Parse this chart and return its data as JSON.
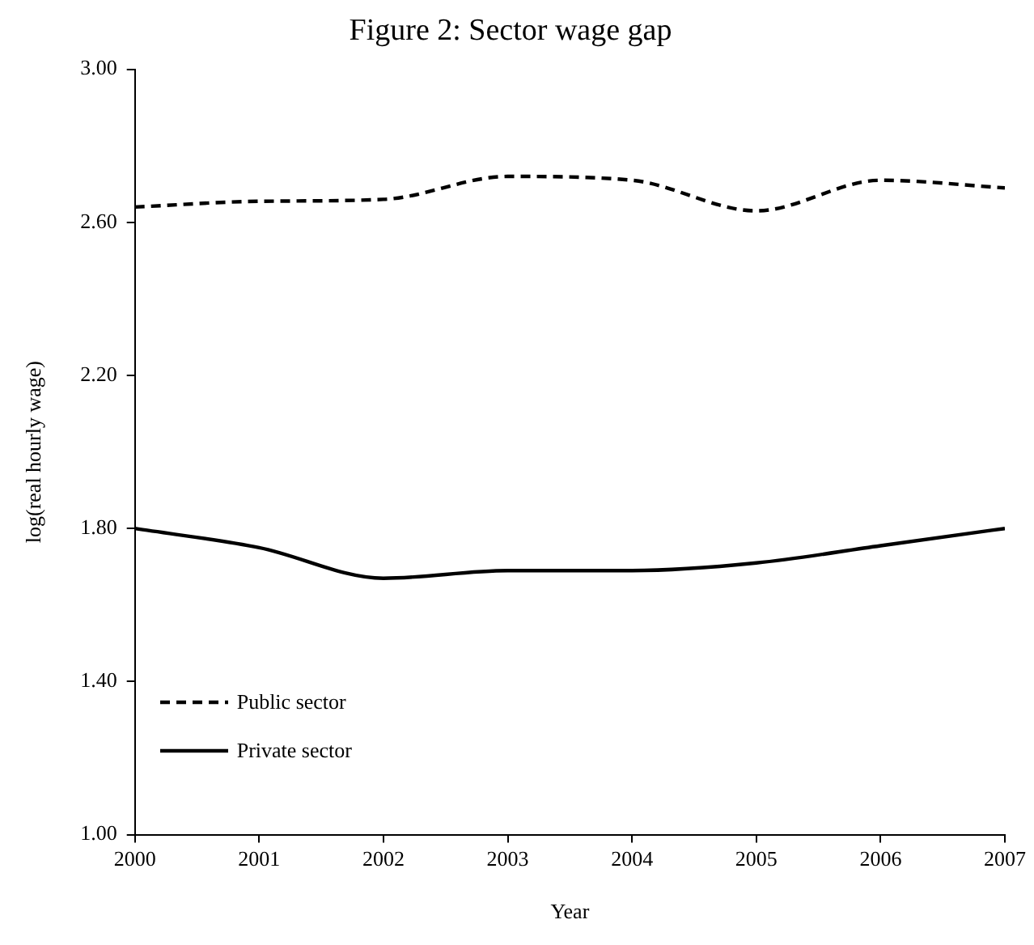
{
  "chart_data": {
    "type": "line",
    "title": "Figure 2: Sector wage gap",
    "xlabel": "Year",
    "ylabel": "log(real hourly wage)",
    "x": [
      2000,
      2001,
      2002,
      2003,
      2004,
      2005,
      2006,
      2007
    ],
    "series": [
      {
        "name": "Public sector",
        "color": "#000000",
        "line_style": "dashed",
        "values": [
          2.64,
          2.655,
          2.66,
          2.72,
          2.71,
          2.63,
          2.71,
          2.69
        ]
      },
      {
        "name": "Private sector",
        "color": "#000000",
        "line_style": "solid",
        "values": [
          1.8,
          1.75,
          1.67,
          1.69,
          1.69,
          1.71,
          1.755,
          1.8
        ]
      }
    ],
    "xlim": [
      2000,
      2007
    ],
    "xticks": [
      2000,
      2001,
      2002,
      2003,
      2004,
      2005,
      2006,
      2007
    ],
    "ylim": [
      1,
      3
    ],
    "yticks": [
      {
        "value": 1,
        "label": "1.00"
      },
      {
        "value": 1.4,
        "label": "1.40"
      },
      {
        "value": 1.8,
        "label": "1.80"
      },
      {
        "value": 2.2,
        "label": "2.20"
      },
      {
        "value": 2.6,
        "label": "2.60"
      },
      {
        "value": 3,
        "label": "3.00"
      }
    ],
    "grid": false,
    "legend": "bottom left",
    "marker": "none"
  }
}
